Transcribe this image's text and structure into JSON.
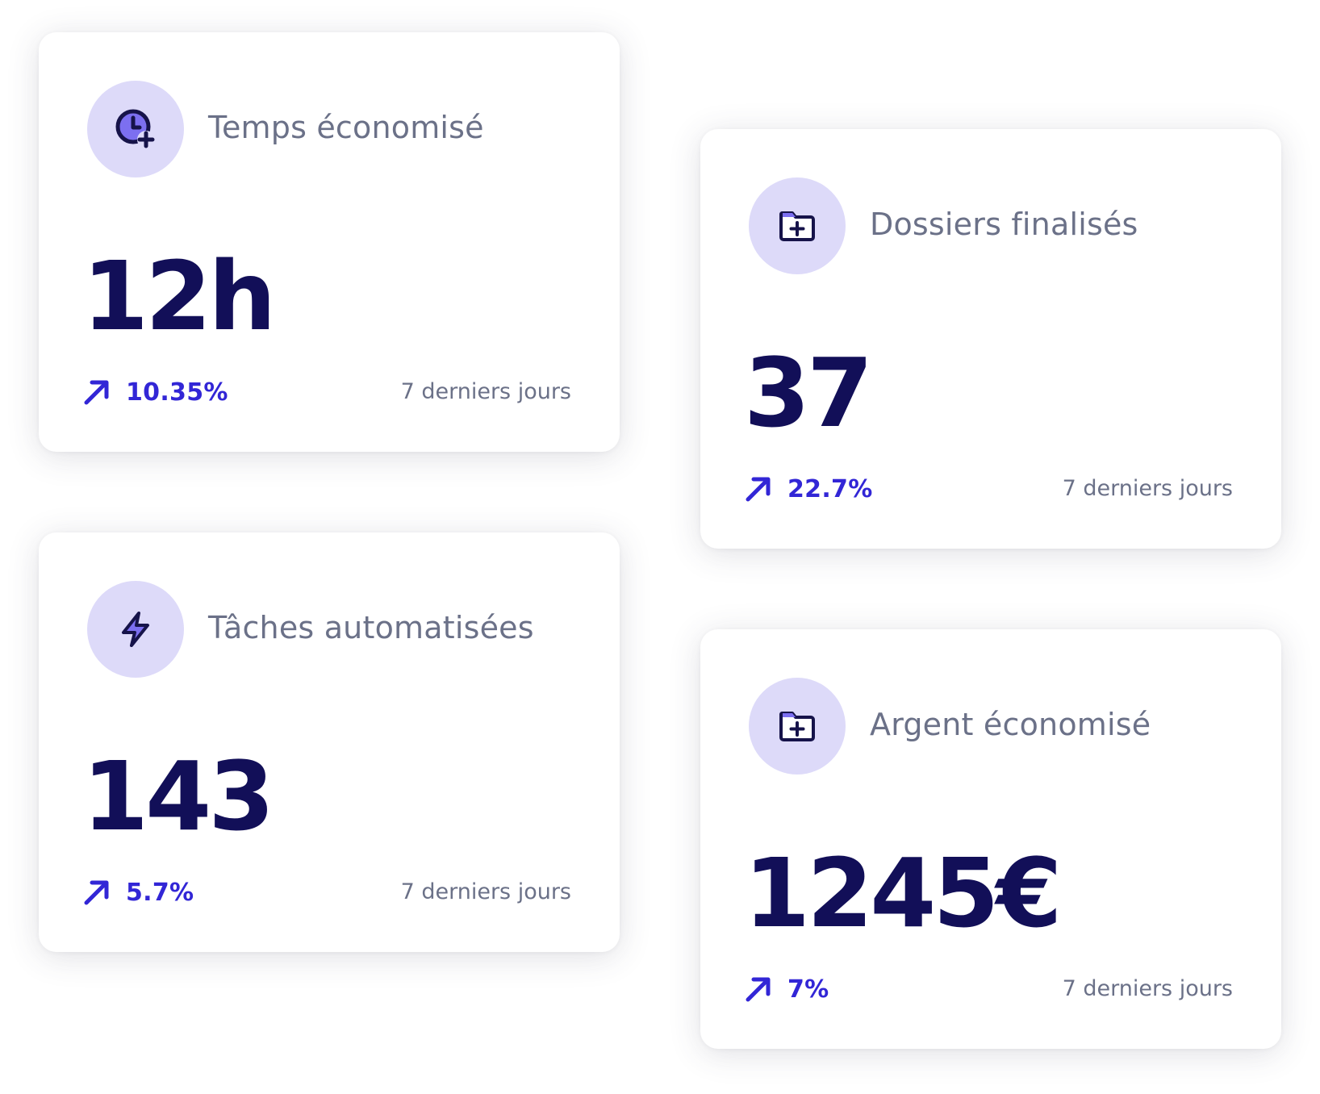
{
  "colors": {
    "value": "#120f58",
    "label": "#6b7188",
    "trend": "#3226d6",
    "icon_bg": "#dddaf9",
    "icon_fill": "#7c6ff0",
    "icon_stroke": "#16134a"
  },
  "cards": [
    {
      "icon": "clock-plus-icon",
      "title": "Temps économisé",
      "value": "12h",
      "trend_icon": "arrow-up-right-icon",
      "change": "10.35%",
      "period": "7 derniers jours"
    },
    {
      "icon": "folder-plus-icon",
      "title": "Dossiers finalisés",
      "value": "37",
      "trend_icon": "arrow-up-right-icon",
      "change": "22.7%",
      "period": "7 derniers jours"
    },
    {
      "icon": "lightning-icon",
      "title": "Tâches automatisées",
      "value": "143",
      "trend_icon": "arrow-up-right-icon",
      "change": "5.7%",
      "period": "7 derniers jours"
    },
    {
      "icon": "folder-plus-icon",
      "title": "Argent économisé",
      "value": "1245€",
      "trend_icon": "arrow-up-right-icon",
      "change": "7%",
      "period": "7 derniers jours"
    }
  ]
}
